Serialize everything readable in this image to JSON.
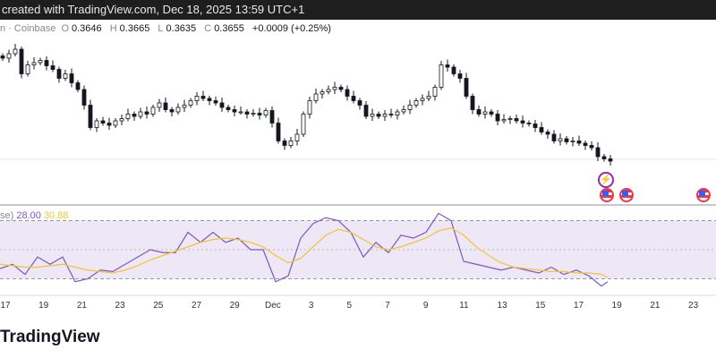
{
  "topbar": {
    "text": "created with TradingView.com, Dec 18, 2025 13:59 UTC+1"
  },
  "legend": {
    "symbol": "n · Coinbase",
    "o_label": "O",
    "o": "0.3646",
    "h_label": "H",
    "h": "0.3665",
    "l_label": "L",
    "l": "0.3635",
    "c_label": "C",
    "c": "0.3655",
    "change": "+0.0009 (+0.25%)"
  },
  "rsi": {
    "label": "se)",
    "rsi_value": "28.00",
    "ma_value": "30.88",
    "rsi_color": "#7e57c2",
    "ma_color": "#f5c431",
    "band_color": "#ede7f6",
    "upper": 70,
    "middle": 50,
    "lower": 30
  },
  "x_labels": [
    "17",
    "19",
    "21",
    "23",
    "25",
    "27",
    "29",
    "Dec",
    "3",
    "5",
    "7",
    "9",
    "11",
    "13",
    "15",
    "17",
    "19",
    "21",
    "23"
  ],
  "brand": "TradingView",
  "chart_data": {
    "type": "candlestick",
    "closes": [
      0.3885,
      0.3895,
      0.3905,
      0.385,
      0.387,
      0.3875,
      0.388,
      0.3868,
      0.386,
      0.384,
      0.385,
      0.383,
      0.3815,
      0.378,
      0.373,
      0.3745,
      0.374,
      0.3735,
      0.3745,
      0.375,
      0.376,
      0.3755,
      0.3765,
      0.376,
      0.3775,
      0.3785,
      0.377,
      0.3765,
      0.3775,
      0.378,
      0.379,
      0.38,
      0.3795,
      0.379,
      0.3785,
      0.3775,
      0.377,
      0.3765,
      0.3765,
      0.376,
      0.3762,
      0.3758,
      0.3768,
      0.374,
      0.37,
      0.369,
      0.37,
      0.3715,
      0.376,
      0.379,
      0.3805,
      0.381,
      0.3815,
      0.382,
      0.3815,
      0.38,
      0.379,
      0.378,
      0.3755,
      0.376,
      0.3755,
      0.376,
      0.3758,
      0.3765,
      0.377,
      0.378,
      0.379,
      0.3795,
      0.38,
      0.382,
      0.387,
      0.3865,
      0.385,
      0.384,
      0.38,
      0.377,
      0.376,
      0.3765,
      0.376,
      0.3745,
      0.3748,
      0.375,
      0.3745,
      0.374,
      0.3738,
      0.373,
      0.372,
      0.3715,
      0.37,
      0.3705,
      0.3698,
      0.37,
      0.3695,
      0.369,
      0.3685,
      0.3665,
      0.366,
      0.3655
    ],
    "rsi": [
      37,
      40,
      33,
      45,
      40,
      45,
      28,
      30,
      36,
      35,
      40,
      45,
      50,
      48,
      48,
      62,
      55,
      62,
      55,
      58,
      50,
      50,
      28,
      32,
      58,
      68,
      72,
      70,
      62,
      45,
      55,
      48,
      60,
      58,
      62,
      75,
      70,
      42,
      40,
      38,
      36,
      38,
      36,
      34,
      38,
      33,
      36,
      32,
      25,
      28
    ],
    "rsi_ma": [
      40,
      39,
      38,
      38,
      39,
      40,
      38,
      36,
      35,
      34,
      36,
      39,
      43,
      46,
      49,
      52,
      55,
      57,
      58,
      57,
      55,
      52,
      46,
      41,
      44,
      52,
      60,
      64,
      62,
      57,
      52,
      50,
      52,
      55,
      58,
      63,
      65,
      60,
      52,
      46,
      41,
      38,
      37,
      36,
      35,
      35,
      34,
      34,
      33,
      31
    ]
  }
}
